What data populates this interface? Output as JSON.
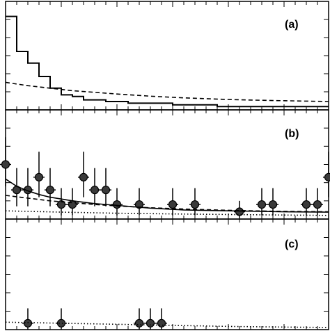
{
  "chart_data": [
    {
      "panel": "(a)",
      "type": "line",
      "xlim": [
        0,
        29
      ],
      "ylim": [
        0,
        6.5
      ],
      "grid": false,
      "legend": "none",
      "series": [
        {
          "style": "histogram-step-solid",
          "bin_edges": [
            0,
            1,
            2,
            3,
            4,
            5,
            6,
            7,
            8,
            9,
            10,
            11,
            12,
            13,
            14,
            15,
            16,
            17,
            18,
            19,
            20,
            21,
            22,
            23,
            24,
            25,
            26,
            27,
            28,
            29
          ],
          "values": [
            5.6,
            3.5,
            2.8,
            2.0,
            1.3,
            0.9,
            0.8,
            0.6,
            0.6,
            0.5,
            0.5,
            0.4,
            0.4,
            0.4,
            0.4,
            0.3,
            0.3,
            0.3,
            0.3,
            0.2,
            0.2,
            0.2,
            0.2,
            0.2,
            0.2,
            0.2,
            0.2,
            0.2,
            0.2
          ]
        },
        {
          "style": "dashed-curve",
          "x": [
            0,
            2,
            4,
            6,
            8,
            10,
            13,
            16,
            20,
            24,
            29
          ],
          "values": [
            1.65,
            1.45,
            1.3,
            1.15,
            1.05,
            0.95,
            0.82,
            0.72,
            0.62,
            0.56,
            0.5
          ]
        }
      ]
    },
    {
      "panel": "(b)",
      "type": "scatter",
      "xlim": [
        0,
        29
      ],
      "ylim": [
        0,
        6.0
      ],
      "grid": false,
      "legend": "none",
      "series": [
        {
          "style": "points-with-error-bars",
          "x": [
            0,
            1,
            2,
            3,
            4,
            5,
            6,
            7,
            8,
            9,
            10,
            12,
            15,
            17,
            21,
            23,
            24,
            27,
            28,
            29
          ],
          "values": [
            3.0,
            1.6,
            1.6,
            2.3,
            1.6,
            0.8,
            0.8,
            2.3,
            1.6,
            1.6,
            0.8,
            0.8,
            0.8,
            0.8,
            0.4,
            0.8,
            0.8,
            0.8,
            0.8,
            2.3
          ],
          "err_low": [
            1.2,
            0.9,
            0.9,
            1.1,
            0.9,
            0.6,
            0.6,
            1.1,
            0.9,
            0.9,
            0.6,
            0.6,
            0.6,
            0.6,
            0.35,
            0.6,
            0.6,
            0.6,
            0.6,
            1.1
          ],
          "err_high": [
            1.5,
            1.2,
            1.2,
            1.4,
            1.2,
            0.9,
            0.9,
            1.4,
            1.2,
            1.2,
            0.9,
            0.9,
            0.9,
            0.9,
            0.6,
            0.9,
            0.9,
            0.9,
            0.9,
            1.4
          ]
        },
        {
          "style": "solid-curve",
          "x": [
            0,
            1,
            2,
            3,
            4,
            6,
            8,
            10,
            13,
            16,
            20,
            25,
            29
          ],
          "values": [
            2.2,
            1.8,
            1.55,
            1.35,
            1.2,
            1.0,
            0.85,
            0.75,
            0.6,
            0.5,
            0.45,
            0.4,
            0.38
          ]
        },
        {
          "style": "dashed-curve",
          "x": [
            0,
            2,
            4,
            6,
            8,
            10,
            13,
            16,
            20,
            24,
            29
          ],
          "values": [
            1.3,
            1.15,
            1.0,
            0.9,
            0.8,
            0.72,
            0.62,
            0.55,
            0.48,
            0.43,
            0.4
          ]
        },
        {
          "style": "dotted-curve",
          "x": [
            0,
            5,
            10,
            15,
            20,
            25,
            29
          ],
          "values": [
            0.45,
            0.38,
            0.32,
            0.28,
            0.25,
            0.22,
            0.2
          ]
        }
      ]
    },
    {
      "panel": "(c)",
      "type": "scatter",
      "xlim": [
        0,
        29
      ],
      "ylim": [
        0,
        5.2
      ],
      "grid": false,
      "legend": "none",
      "series": [
        {
          "style": "points-with-error-bars",
          "x": [
            2,
            5,
            12,
            13,
            14
          ],
          "values": [
            0.3,
            0.3,
            0.3,
            0.3,
            0.3
          ],
          "err_low": [
            0.3,
            0.3,
            0.3,
            0.3,
            0.3
          ],
          "err_high": [
            0.7,
            0.7,
            0.7,
            0.7,
            0.7
          ]
        },
        {
          "style": "dotted-curve",
          "x": [
            0,
            5,
            10,
            15,
            20,
            25,
            29
          ],
          "values": [
            0.35,
            0.3,
            0.25,
            0.2,
            0.15,
            0.12,
            0.1
          ]
        }
      ]
    }
  ]
}
